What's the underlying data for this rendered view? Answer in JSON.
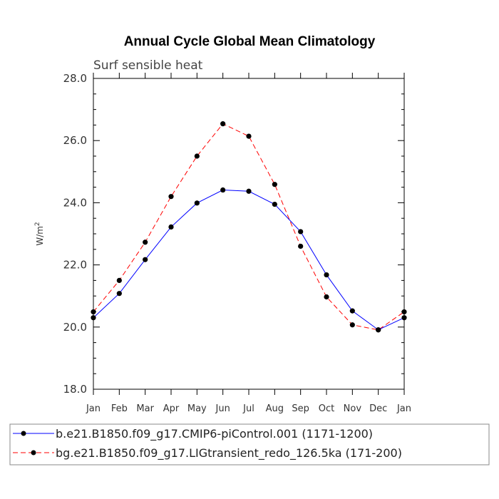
{
  "chart_data": {
    "type": "line",
    "title": "Annual Cycle Global Mean Climatology",
    "subtitle": "Surf sensible heat",
    "xlabel": "",
    "ylabel": "W/m",
    "ylabel_superscript": "2",
    "categories": [
      "Jan",
      "Feb",
      "Mar",
      "Apr",
      "May",
      "Jun",
      "Jul",
      "Aug",
      "Sep",
      "Oct",
      "Nov",
      "Dec",
      "Jan"
    ],
    "ylim": [
      18.0,
      28.0
    ],
    "yticks": [
      18.0,
      20.0,
      22.0,
      24.0,
      26.0,
      28.0
    ],
    "ytick_labels": [
      "18.0",
      "20.0",
      "22.0",
      "24.0",
      "26.0",
      "28.0"
    ],
    "series": [
      {
        "name": "b.e21.B1850.f09_g17.CMIP6-piControl.001 (1171-1200)",
        "color": "#0000ff",
        "dash": "solid",
        "values": [
          20.3,
          21.08,
          22.17,
          23.22,
          23.99,
          24.41,
          24.37,
          23.95,
          23.07,
          21.68,
          20.52,
          19.91,
          20.3
        ]
      },
      {
        "name": "bg.e21.B1850.f09_g17.LIGtransient_redo_126.5ka (171-200)",
        "color": "#ff0000",
        "dash": "dashed",
        "values": [
          20.49,
          21.5,
          22.73,
          24.2,
          25.5,
          26.54,
          26.14,
          24.59,
          22.6,
          20.97,
          20.07,
          19.91,
          20.49
        ]
      }
    ]
  }
}
